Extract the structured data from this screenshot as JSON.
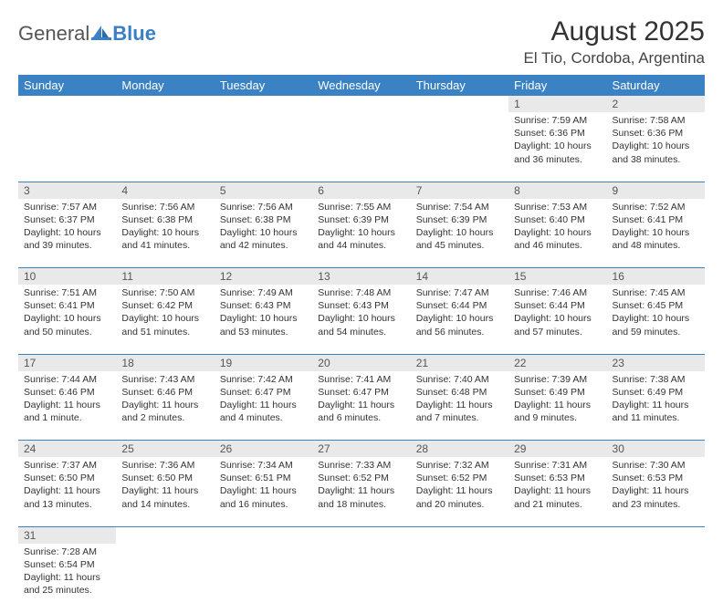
{
  "logo": {
    "general": "General",
    "blue": "Blue"
  },
  "title": "August 2025",
  "location": "El Tio, Cordoba, Argentina",
  "headers": [
    "Sunday",
    "Monday",
    "Tuesday",
    "Wednesday",
    "Thursday",
    "Friday",
    "Saturday"
  ],
  "colors": {
    "header_bg": "#3b82c4",
    "header_text": "#ffffff",
    "daynum_bg": "#e9e9e9",
    "border": "#3b82c4",
    "logo_blue": "#3b7fc4"
  },
  "weeks": [
    [
      null,
      null,
      null,
      null,
      null,
      {
        "n": "1",
        "sr": "Sunrise: 7:59 AM",
        "ss": "Sunset: 6:36 PM",
        "d1": "Daylight: 10 hours",
        "d2": "and 36 minutes."
      },
      {
        "n": "2",
        "sr": "Sunrise: 7:58 AM",
        "ss": "Sunset: 6:36 PM",
        "d1": "Daylight: 10 hours",
        "d2": "and 38 minutes."
      }
    ],
    [
      {
        "n": "3",
        "sr": "Sunrise: 7:57 AM",
        "ss": "Sunset: 6:37 PM",
        "d1": "Daylight: 10 hours",
        "d2": "and 39 minutes."
      },
      {
        "n": "4",
        "sr": "Sunrise: 7:56 AM",
        "ss": "Sunset: 6:38 PM",
        "d1": "Daylight: 10 hours",
        "d2": "and 41 minutes."
      },
      {
        "n": "5",
        "sr": "Sunrise: 7:56 AM",
        "ss": "Sunset: 6:38 PM",
        "d1": "Daylight: 10 hours",
        "d2": "and 42 minutes."
      },
      {
        "n": "6",
        "sr": "Sunrise: 7:55 AM",
        "ss": "Sunset: 6:39 PM",
        "d1": "Daylight: 10 hours",
        "d2": "and 44 minutes."
      },
      {
        "n": "7",
        "sr": "Sunrise: 7:54 AM",
        "ss": "Sunset: 6:39 PM",
        "d1": "Daylight: 10 hours",
        "d2": "and 45 minutes."
      },
      {
        "n": "8",
        "sr": "Sunrise: 7:53 AM",
        "ss": "Sunset: 6:40 PM",
        "d1": "Daylight: 10 hours",
        "d2": "and 46 minutes."
      },
      {
        "n": "9",
        "sr": "Sunrise: 7:52 AM",
        "ss": "Sunset: 6:41 PM",
        "d1": "Daylight: 10 hours",
        "d2": "and 48 minutes."
      }
    ],
    [
      {
        "n": "10",
        "sr": "Sunrise: 7:51 AM",
        "ss": "Sunset: 6:41 PM",
        "d1": "Daylight: 10 hours",
        "d2": "and 50 minutes."
      },
      {
        "n": "11",
        "sr": "Sunrise: 7:50 AM",
        "ss": "Sunset: 6:42 PM",
        "d1": "Daylight: 10 hours",
        "d2": "and 51 minutes."
      },
      {
        "n": "12",
        "sr": "Sunrise: 7:49 AM",
        "ss": "Sunset: 6:43 PM",
        "d1": "Daylight: 10 hours",
        "d2": "and 53 minutes."
      },
      {
        "n": "13",
        "sr": "Sunrise: 7:48 AM",
        "ss": "Sunset: 6:43 PM",
        "d1": "Daylight: 10 hours",
        "d2": "and 54 minutes."
      },
      {
        "n": "14",
        "sr": "Sunrise: 7:47 AM",
        "ss": "Sunset: 6:44 PM",
        "d1": "Daylight: 10 hours",
        "d2": "and 56 minutes."
      },
      {
        "n": "15",
        "sr": "Sunrise: 7:46 AM",
        "ss": "Sunset: 6:44 PM",
        "d1": "Daylight: 10 hours",
        "d2": "and 57 minutes."
      },
      {
        "n": "16",
        "sr": "Sunrise: 7:45 AM",
        "ss": "Sunset: 6:45 PM",
        "d1": "Daylight: 10 hours",
        "d2": "and 59 minutes."
      }
    ],
    [
      {
        "n": "17",
        "sr": "Sunrise: 7:44 AM",
        "ss": "Sunset: 6:46 PM",
        "d1": "Daylight: 11 hours",
        "d2": "and 1 minute."
      },
      {
        "n": "18",
        "sr": "Sunrise: 7:43 AM",
        "ss": "Sunset: 6:46 PM",
        "d1": "Daylight: 11 hours",
        "d2": "and 2 minutes."
      },
      {
        "n": "19",
        "sr": "Sunrise: 7:42 AM",
        "ss": "Sunset: 6:47 PM",
        "d1": "Daylight: 11 hours",
        "d2": "and 4 minutes."
      },
      {
        "n": "20",
        "sr": "Sunrise: 7:41 AM",
        "ss": "Sunset: 6:47 PM",
        "d1": "Daylight: 11 hours",
        "d2": "and 6 minutes."
      },
      {
        "n": "21",
        "sr": "Sunrise: 7:40 AM",
        "ss": "Sunset: 6:48 PM",
        "d1": "Daylight: 11 hours",
        "d2": "and 7 minutes."
      },
      {
        "n": "22",
        "sr": "Sunrise: 7:39 AM",
        "ss": "Sunset: 6:49 PM",
        "d1": "Daylight: 11 hours",
        "d2": "and 9 minutes."
      },
      {
        "n": "23",
        "sr": "Sunrise: 7:38 AM",
        "ss": "Sunset: 6:49 PM",
        "d1": "Daylight: 11 hours",
        "d2": "and 11 minutes."
      }
    ],
    [
      {
        "n": "24",
        "sr": "Sunrise: 7:37 AM",
        "ss": "Sunset: 6:50 PM",
        "d1": "Daylight: 11 hours",
        "d2": "and 13 minutes."
      },
      {
        "n": "25",
        "sr": "Sunrise: 7:36 AM",
        "ss": "Sunset: 6:50 PM",
        "d1": "Daylight: 11 hours",
        "d2": "and 14 minutes."
      },
      {
        "n": "26",
        "sr": "Sunrise: 7:34 AM",
        "ss": "Sunset: 6:51 PM",
        "d1": "Daylight: 11 hours",
        "d2": "and 16 minutes."
      },
      {
        "n": "27",
        "sr": "Sunrise: 7:33 AM",
        "ss": "Sunset: 6:52 PM",
        "d1": "Daylight: 11 hours",
        "d2": "and 18 minutes."
      },
      {
        "n": "28",
        "sr": "Sunrise: 7:32 AM",
        "ss": "Sunset: 6:52 PM",
        "d1": "Daylight: 11 hours",
        "d2": "and 20 minutes."
      },
      {
        "n": "29",
        "sr": "Sunrise: 7:31 AM",
        "ss": "Sunset: 6:53 PM",
        "d1": "Daylight: 11 hours",
        "d2": "and 21 minutes."
      },
      {
        "n": "30",
        "sr": "Sunrise: 7:30 AM",
        "ss": "Sunset: 6:53 PM",
        "d1": "Daylight: 11 hours",
        "d2": "and 23 minutes."
      }
    ],
    [
      {
        "n": "31",
        "sr": "Sunrise: 7:28 AM",
        "ss": "Sunset: 6:54 PM",
        "d1": "Daylight: 11 hours",
        "d2": "and 25 minutes."
      },
      null,
      null,
      null,
      null,
      null,
      null
    ]
  ]
}
